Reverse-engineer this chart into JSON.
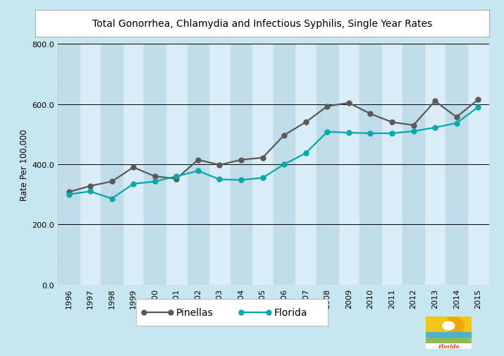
{
  "title": "Total Gonorrhea, Chlamydia and Infectious Syphilis, Single Year Rates",
  "ylabel": "Rate Per 100,000",
  "years": [
    1996,
    1997,
    1998,
    1999,
    2000,
    2001,
    2002,
    2003,
    2004,
    2005,
    2006,
    2007,
    2008,
    2009,
    2010,
    2011,
    2012,
    2013,
    2014,
    2015
  ],
  "pinellas": [
    308,
    328,
    343,
    390,
    360,
    352,
    415,
    398,
    415,
    422,
    497,
    540,
    593,
    604,
    568,
    540,
    530,
    610,
    557,
    615
  ],
  "florida": [
    300,
    310,
    286,
    335,
    343,
    360,
    378,
    350,
    348,
    355,
    400,
    437,
    508,
    505,
    503,
    503,
    510,
    522,
    537,
    590
  ],
  "pinellas_color": "#595959",
  "florida_color": "#00aaaa",
  "outer_bg": "#c8e6f0",
  "plot_bg_light": "#daedf7",
  "stripe_color": "#c0dce9",
  "ylim": [
    0,
    800
  ],
  "yticks": [
    0.0,
    200.0,
    400.0,
    600.0,
    800.0
  ],
  "title_fontsize": 10,
  "axis_label_fontsize": 8.5,
  "tick_fontsize": 8,
  "legend_fontsize": 10
}
